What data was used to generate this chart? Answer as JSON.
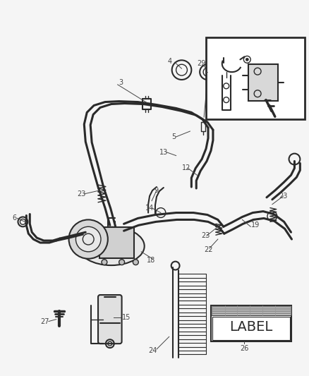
{
  "bg_color": "#f5f5f5",
  "line_color": "#2a2a2a",
  "label_color": "#444444",
  "fig_width": 4.38,
  "fig_height": 5.33,
  "dpi": 100,
  "lw_main": 2.2,
  "lw_med": 1.5,
  "lw_thin": 1.0,
  "lw_fine": 0.7,
  "label_font_size": 7.0
}
